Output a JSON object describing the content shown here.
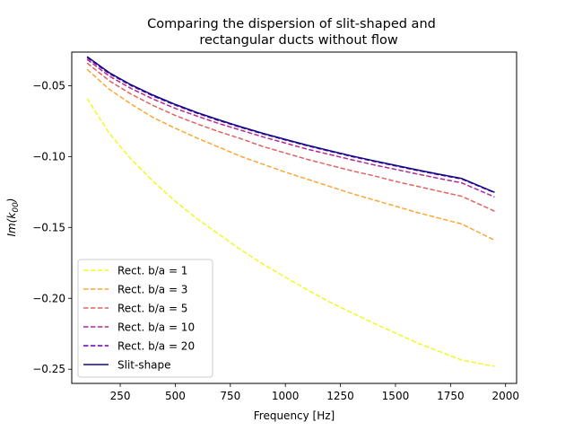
{
  "chart_data": {
    "type": "line",
    "title_lines": [
      "Comparing the dispersion of slit-shaped and",
      "rectangular ducts without flow"
    ],
    "xlabel": "Frequency [Hz]",
    "ylabel": "Im(k00)",
    "ylabel_parts": {
      "base": "Im(k",
      "sub": "00",
      "close": ")"
    },
    "xlim": [
      30,
      2050
    ],
    "ylim": [
      -0.26,
      -0.0263
    ],
    "x_ticks": [
      250,
      500,
      750,
      1000,
      1250,
      1500,
      1750,
      2000
    ],
    "x_tick_labels": [
      "250",
      "500",
      "750",
      "1000",
      "1250",
      "1500",
      "1750",
      "2000"
    ],
    "y_ticks": [
      -0.05,
      -0.1,
      -0.15,
      -0.2,
      -0.25
    ],
    "y_tick_labels": [
      "−0.05",
      "−0.10",
      "−0.15",
      "−0.20",
      "−0.25"
    ],
    "grid": false,
    "legend_position": "lower-left",
    "x": [
      100,
      200,
      300,
      400,
      500,
      600,
      700,
      800,
      900,
      1000,
      1100,
      1200,
      1300,
      1400,
      1500,
      1600,
      1700,
      1800,
      1950
    ],
    "series": [
      {
        "name": "Rect. b/a = 1",
        "color": "#f0f921",
        "dash": true,
        "values": [
          -0.059,
          -0.0835,
          -0.102,
          -0.1175,
          -0.1315,
          -0.144,
          -0.155,
          -0.166,
          -0.176,
          -0.185,
          -0.194,
          -0.2025,
          -0.21,
          -0.2175,
          -0.2245,
          -0.2315,
          -0.2375,
          -0.2435,
          -0.248
        ]
      },
      {
        "name": "Rect. b/a = 3",
        "color": "#fca636",
        "dash": true,
        "values": [
          -0.0385,
          -0.0525,
          -0.063,
          -0.0725,
          -0.08,
          -0.087,
          -0.0935,
          -0.1,
          -0.1055,
          -0.111,
          -0.116,
          -0.121,
          -0.126,
          -0.1305,
          -0.135,
          -0.1395,
          -0.1435,
          -0.1475,
          -0.159
        ]
      },
      {
        "name": "Rect. b/a = 5",
        "color": "#e16462",
        "dash": true,
        "values": [
          -0.034,
          -0.0465,
          -0.056,
          -0.064,
          -0.071,
          -0.077,
          -0.0825,
          -0.0875,
          -0.093,
          -0.0975,
          -0.102,
          -0.106,
          -0.11,
          -0.1135,
          -0.1175,
          -0.121,
          -0.1245,
          -0.128,
          -0.1385
        ]
      },
      {
        "name": "Rect. b/a = 10",
        "color": "#b12a90",
        "dash": true,
        "values": [
          -0.0315,
          -0.0432,
          -0.052,
          -0.0595,
          -0.066,
          -0.0715,
          -0.0768,
          -0.0815,
          -0.0862,
          -0.0905,
          -0.0948,
          -0.0985,
          -0.1022,
          -0.1058,
          -0.109,
          -0.1123,
          -0.1155,
          -0.1185,
          -0.1285
        ]
      },
      {
        "name": "Rect. b/a = 20",
        "color": "#6a00a8",
        "dash": true,
        "values": [
          -0.0302,
          -0.0415,
          -0.05,
          -0.0573,
          -0.0637,
          -0.0695,
          -0.0747,
          -0.0795,
          -0.0841,
          -0.0883,
          -0.0924,
          -0.0962,
          -0.0999,
          -0.1033,
          -0.1066,
          -0.1098,
          -0.1129,
          -0.1158,
          -0.1255
        ]
      },
      {
        "name": "Slit-shape",
        "color": "#0d0887",
        "dash": false,
        "values": [
          -0.0295,
          -0.0408,
          -0.0494,
          -0.0567,
          -0.0632,
          -0.069,
          -0.0742,
          -0.0791,
          -0.0837,
          -0.0879,
          -0.092,
          -0.0958,
          -0.0995,
          -0.1029,
          -0.1062,
          -0.1094,
          -0.1125,
          -0.1154,
          -0.1252
        ]
      }
    ]
  }
}
